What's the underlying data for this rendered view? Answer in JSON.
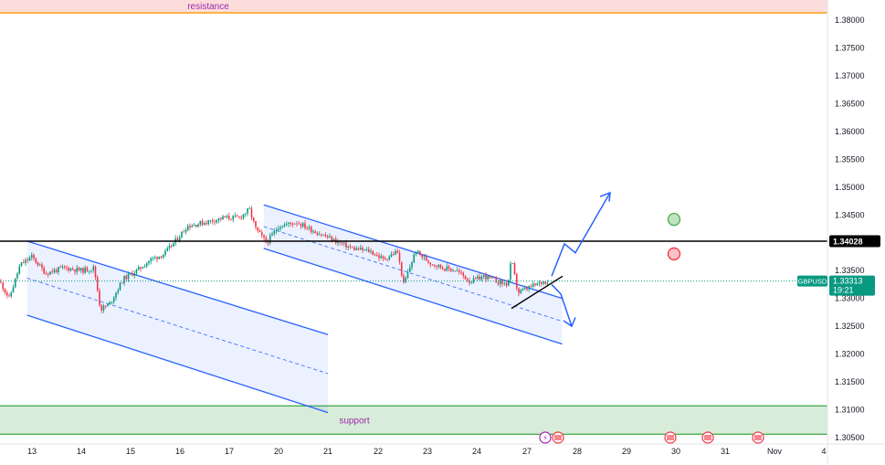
{
  "chart_data": {
    "type": "candlestick",
    "symbol": "GBPUSD",
    "y_ticks": [
      "1.38000",
      "1.37500",
      "1.37000",
      "1.36500",
      "1.36000",
      "1.35500",
      "1.35000",
      "1.34500",
      "1.34000",
      "1.33500",
      "1.33000",
      "1.32500",
      "1.32000",
      "1.31500",
      "1.31000",
      "1.30500"
    ],
    "x_ticks": [
      "13",
      "14",
      "15",
      "16",
      "17",
      "20",
      "21",
      "22",
      "23",
      "24",
      "27",
      "28",
      "29",
      "30",
      "31",
      "Nov",
      "4"
    ],
    "price_label": {
      "symbol": "GBPUSD",
      "price": "1.33313",
      "countdown": "19:21"
    },
    "level_label": {
      "price": "1.34028"
    },
    "zones": [
      {
        "name": "resistance",
        "label": "resistance",
        "from": 1.3813,
        "to": 1.3838,
        "color": "#f44336"
      },
      {
        "name": "support",
        "label": "support",
        "from": 1.3056,
        "to": 1.3107,
        "color": "#4caf50"
      }
    ],
    "horizontal_level": {
      "value": 1.34028,
      "color": "#000000"
    },
    "current_price": {
      "value": 1.33313,
      "color": "#089981"
    },
    "channels": [
      {
        "name": "channel-left",
        "upper": [
          [
            "12.9",
            1.3403
          ],
          [
            "21",
            1.3235
          ]
        ],
        "lower": [
          [
            "12.9",
            1.327
          ],
          [
            "21",
            1.3095
          ]
        ],
        "color": "#2962ff"
      },
      {
        "name": "channel-right",
        "upper": [
          [
            "17.7",
            1.3468
          ],
          [
            "27.7",
            1.33
          ]
        ],
        "lower": [
          [
            "17.7",
            1.339
          ],
          [
            "27.7",
            1.3218
          ]
        ],
        "color": "#2962ff"
      }
    ],
    "markers": [
      {
        "name": "target-circle",
        "color": "#4caf50",
        "x": "30",
        "y": 1.3442
      },
      {
        "name": "stop-circle",
        "color": "#f23645",
        "x": "30",
        "y": 1.338
      }
    ],
    "event_icons": [
      "27",
      "30",
      "31",
      "Nov"
    ]
  }
}
